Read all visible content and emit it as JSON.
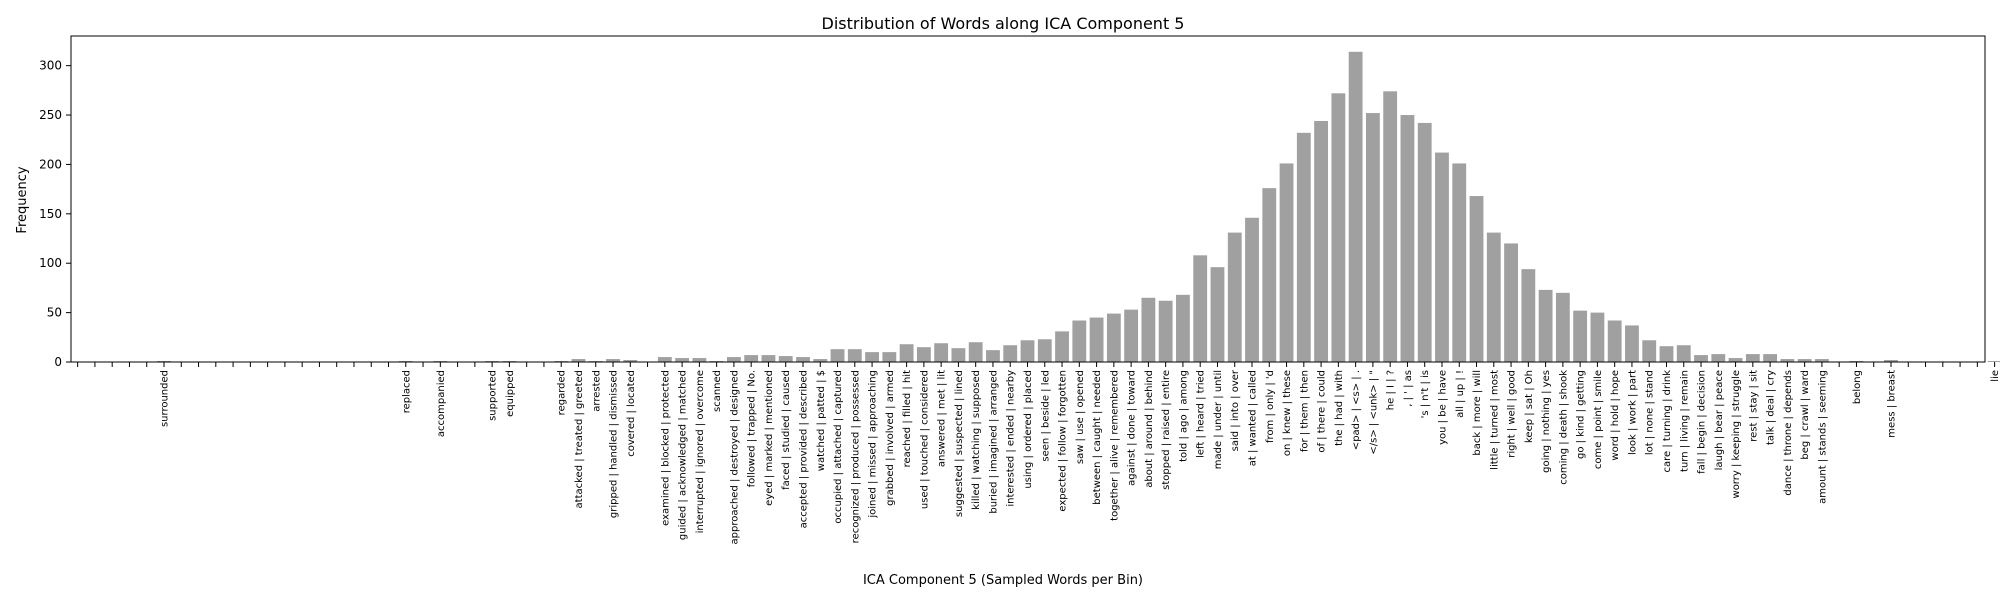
{
  "chart_data": {
    "type": "bar",
    "title": "Distribution of Words along ICA Component 5",
    "xlabel": "ICA Component 5 (Sampled Words per Bin)",
    "ylabel": "Frequency",
    "ylim": [
      0,
      330
    ],
    "yticks": [
      0,
      50,
      100,
      150,
      200,
      250,
      300
    ],
    "bar_color": "#a0a0a0",
    "grid": false,
    "categories": [
      "",
      "",
      "",
      "",
      "",
      "surrounded",
      "",
      "",
      "",
      "",
      "",
      "",
      "",
      "",
      "",
      "",
      "",
      "",
      "",
      "replaced",
      "",
      "accompanied",
      "",
      "",
      "supported",
      "equipped",
      "",
      "",
      "regarded",
      "attacked | treated | greeted",
      "arrested",
      "gripped | handled | dismissed",
      "covered | located",
      "",
      "examined | blocked | protected",
      "guided | acknowledged | matched",
      "interrupted | ignored | overcome",
      "scanned",
      "approached | destroyed | designed",
      "followed | trapped | No.",
      "eyed | marked | mentioned",
      "faced | studied | caused",
      "accepted | provided | described",
      "watched | patted | $",
      "occupied | attached | captured",
      "recognized | produced | possessed",
      "joined | missed | approaching",
      "grabbed | involved | armed",
      "reached | filled | hit",
      "used | touched | considered",
      "answered | met | lit",
      "suggested | suspected | lined",
      "killed | watching | supposed",
      "buried | imagined | arranged",
      "interested | ended | nearby",
      "using | ordered | placed",
      "seen | beside | led",
      "expected | follow | forgotten",
      "saw | use | opened",
      "between | caught | needed",
      "together | alive | remembered",
      "against | done | toward",
      "about | around | behind",
      "stopped | raised | entire",
      "told | ago | among",
      "left | heard | tried",
      "made | under | until",
      "said | into | over",
      "at | wanted | called",
      "from | only | 'd",
      "on | knew | these",
      "for | them | then",
      "of | there | could",
      "the | had | with",
      "<pad> | <s> | .",
      "</s> | <unk> | \"",
      "he | I | ?",
      ", | ' | as",
      "'s | n't | is",
      "you | be | have",
      "all | up | !",
      "back | more | will",
      "little | turned | most",
      "right | well | good",
      "keep | sat | Oh",
      "going | nothing | yes",
      "coming | death | shook",
      "go | kind | getting",
      "come | point | smile",
      "word | hold | hope",
      "look | work | part",
      "lot | none | stand",
      "care | turning | drink",
      "turn | living | remain",
      "fall | begin | decision",
      "laugh | bear | peace",
      "worry | keeping | struggle",
      "rest | stay | sit",
      "talk | deal | cry",
      "dance | throne | depends",
      "beg | crawl | ward",
      "amount | stands | seeming",
      "",
      "belong",
      "",
      "mess | breast",
      "",
      "",
      "",
      "",
      "",
      "lie",
      ""
    ],
    "values": [
      0,
      0,
      0,
      0,
      0,
      1,
      0,
      0,
      0,
      0,
      0,
      0,
      0,
      0,
      0,
      0,
      0,
      0,
      0,
      1,
      0,
      1,
      0,
      0,
      1,
      1,
      0,
      0,
      1,
      3,
      1,
      3,
      2,
      0,
      5,
      4,
      4,
      1,
      5,
      7,
      7,
      6,
      5,
      3,
      13,
      13,
      10,
      10,
      18,
      15,
      19,
      14,
      20,
      12,
      17,
      22,
      23,
      31,
      42,
      45,
      49,
      53,
      65,
      62,
      68,
      108,
      96,
      131,
      146,
      176,
      201,
      232,
      244,
      272,
      314,
      252,
      274,
      250,
      242,
      212,
      201,
      168,
      131,
      120,
      94,
      73,
      70,
      52,
      50,
      42,
      37,
      22,
      16,
      17,
      7,
      8,
      4,
      8,
      8,
      3,
      3,
      3,
      0,
      1,
      0,
      2,
      0,
      0,
      0,
      0,
      0,
      1,
      0
    ]
  }
}
